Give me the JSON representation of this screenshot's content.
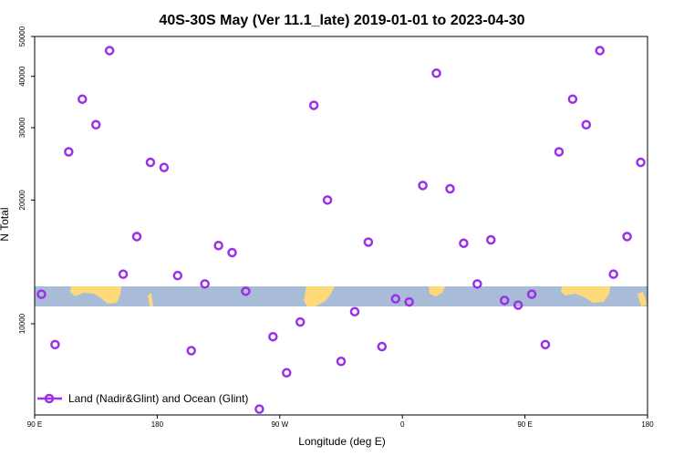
{
  "chart_data": {
    "type": "scatter",
    "title": "40S-30S May (Ver 11.1_late)   2019-01-01 to 2023-04-30",
    "xlabel": "Longitude (deg E)",
    "ylabel": "N Total",
    "xlim": [
      90,
      540
    ],
    "ylim": [
      6000,
      50000
    ],
    "y_scale": "log",
    "x_ticks": [
      {
        "value": 90,
        "label": "90 E"
      },
      {
        "value": 180,
        "label": "180"
      },
      {
        "value": 270,
        "label": "90 W"
      },
      {
        "value": 360,
        "label": "0"
      },
      {
        "value": 450,
        "label": "90 E"
      },
      {
        "value": 540,
        "label": "180"
      }
    ],
    "y_ticks": [
      {
        "value": 10000,
        "label": "10000"
      },
      {
        "value": 20000,
        "label": "20000"
      },
      {
        "value": 30000,
        "label": "30000"
      },
      {
        "value": 40000,
        "label": "40000"
      },
      {
        "value": 50000,
        "label": "50000"
      }
    ],
    "grid": false,
    "legend_position": "bottom-left",
    "marker_color": "#9b30e8",
    "band_color": "#a8bcd8",
    "land_color": "#fdd97a",
    "series": [
      {
        "name": "Land (Nadir&Glint) and Ocean (Glint)",
        "x": [
          95,
          105,
          115,
          125,
          135,
          145,
          155,
          165,
          175,
          185,
          195,
          205,
          215,
          225,
          235,
          245,
          255,
          265,
          275,
          285,
          295,
          305,
          315,
          325,
          335,
          345,
          355,
          365,
          375,
          385,
          395,
          405,
          415,
          425,
          435,
          445,
          455,
          465,
          475,
          485,
          495,
          505,
          515,
          525,
          535
        ],
        "y": [
          11800,
          8900,
          26200,
          35200,
          30500,
          46200,
          13200,
          16300,
          24700,
          24000,
          13100,
          8600,
          12500,
          15500,
          14900,
          12000,
          6200,
          9300,
          7600,
          10100,
          34000,
          20000,
          8100,
          10700,
          15800,
          8800,
          11500,
          11300,
          21700,
          40700,
          21300,
          15700,
          12500,
          16000,
          11400,
          11100,
          11800,
          8900,
          26200,
          35200,
          30500,
          46200,
          13200,
          16300,
          24700
        ]
      }
    ]
  },
  "legend": {
    "label": "Land (Nadir&Glint) and Ocean (Glint)"
  }
}
